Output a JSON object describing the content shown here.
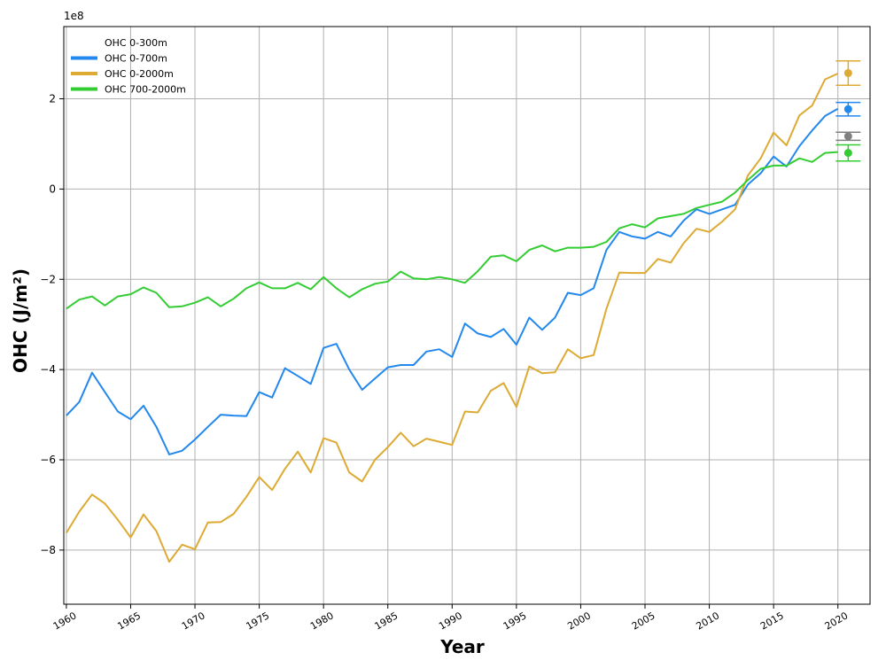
{
  "chart_data": {
    "type": "line",
    "title": "",
    "xlabel": "Year",
    "ylabel": "OHC (J/m²)",
    "y_multiplier_label": "1e8",
    "xlim": [
      1959.8,
      2022.5
    ],
    "ylim": [
      -9.2,
      3.6
    ],
    "xticks": [
      1960,
      1965,
      1970,
      1975,
      1980,
      1985,
      1990,
      1995,
      2000,
      2005,
      2010,
      2015,
      2020
    ],
    "yticks": [
      -8,
      -6,
      -4,
      -2,
      0,
      2
    ],
    "grid": true,
    "legend_position": "top-left",
    "years": [
      1960,
      1961,
      1962,
      1963,
      1964,
      1965,
      1966,
      1967,
      1968,
      1969,
      1970,
      1971,
      1972,
      1973,
      1974,
      1975,
      1976,
      1977,
      1978,
      1979,
      1980,
      1981,
      1982,
      1983,
      1984,
      1985,
      1986,
      1987,
      1988,
      1989,
      1990,
      1991,
      1992,
      1993,
      1994,
      1995,
      1996,
      1997,
      1998,
      1999,
      2000,
      2001,
      2002,
      2003,
      2004,
      2005,
      2006,
      2007,
      2008,
      2009,
      2010,
      2011,
      2012,
      2013,
      2014,
      2015,
      2016,
      2017,
      2018,
      2019,
      2020
    ],
    "series": [
      {
        "name": "OHC 0-300m",
        "color": "#ffffff",
        "values": [],
        "endpoint": {
          "year": 2020.8,
          "value": 1.17,
          "err": 0.09,
          "color": "#808080"
        }
      },
      {
        "name": "OHC 0-700m",
        "color": "#2288ee",
        "values": [
          -5.02,
          -4.72,
          -4.07,
          -4.5,
          -4.93,
          -5.1,
          -4.8,
          -5.27,
          -5.88,
          -5.8,
          -5.55,
          -5.27,
          -5.0,
          -5.02,
          -5.03,
          -4.5,
          -4.62,
          -3.97,
          -4.14,
          -4.32,
          -3.52,
          -3.43,
          -4.0,
          -4.45,
          -4.2,
          -3.95,
          -3.9,
          -3.9,
          -3.6,
          -3.55,
          -3.72,
          -2.98,
          -3.2,
          -3.28,
          -3.1,
          -3.45,
          -2.85,
          -3.12,
          -2.85,
          -2.3,
          -2.35,
          -2.2,
          -1.35,
          -0.95,
          -1.05,
          -1.1,
          -0.95,
          -1.05,
          -0.7,
          -0.45,
          -0.55,
          -0.45,
          -0.35,
          0.1,
          0.35,
          0.72,
          0.5,
          0.95,
          1.3,
          1.62,
          1.78
        ],
        "endpoint": {
          "year": 2020.8,
          "value": 1.77,
          "err": 0.15,
          "color": "#2288ee"
        }
      },
      {
        "name": "OHC 0-2000m",
        "color": "#ddaa33",
        "values": [
          -7.62,
          -7.15,
          -6.77,
          -6.97,
          -7.33,
          -7.72,
          -7.21,
          -7.58,
          -8.26,
          -7.88,
          -7.98,
          -7.39,
          -7.38,
          -7.2,
          -6.82,
          -6.38,
          -6.67,
          -6.2,
          -5.82,
          -6.28,
          -5.52,
          -5.62,
          -6.28,
          -6.48,
          -6.0,
          -5.72,
          -5.4,
          -5.7,
          -5.53,
          -5.6,
          -5.67,
          -4.93,
          -4.95,
          -4.47,
          -4.3,
          -4.83,
          -3.93,
          -4.08,
          -4.06,
          -3.55,
          -3.75,
          -3.68,
          -2.65,
          -1.85,
          -1.86,
          -1.86,
          -1.55,
          -1.63,
          -1.2,
          -0.88,
          -0.95,
          -0.72,
          -0.45,
          0.3,
          0.68,
          1.25,
          0.97,
          1.63,
          1.85,
          2.43,
          2.56
        ],
        "endpoint": {
          "year": 2020.8,
          "value": 2.57,
          "err": 0.27,
          "color": "#ddaa33"
        }
      },
      {
        "name": "OHC 700-2000m",
        "color": "#33cc33",
        "values": [
          -2.65,
          -2.45,
          -2.38,
          -2.58,
          -2.38,
          -2.33,
          -2.18,
          -2.3,
          -2.62,
          -2.6,
          -2.52,
          -2.4,
          -2.6,
          -2.43,
          -2.2,
          -2.07,
          -2.2,
          -2.2,
          -2.08,
          -2.22,
          -1.95,
          -2.2,
          -2.4,
          -2.22,
          -2.1,
          -2.05,
          -1.83,
          -1.98,
          -2.0,
          -1.95,
          -2.0,
          -2.08,
          -1.82,
          -1.5,
          -1.47,
          -1.6,
          -1.35,
          -1.25,
          -1.38,
          -1.3,
          -1.3,
          -1.28,
          -1.17,
          -0.87,
          -0.78,
          -0.85,
          -0.65,
          -0.6,
          -0.55,
          -0.42,
          -0.35,
          -0.28,
          -0.08,
          0.2,
          0.45,
          0.52,
          0.52,
          0.68,
          0.6,
          0.8,
          0.82
        ],
        "endpoint": {
          "year": 2020.8,
          "value": 0.8,
          "err": 0.18,
          "color": "#33cc33"
        }
      }
    ]
  }
}
